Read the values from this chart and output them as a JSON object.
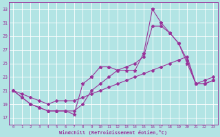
{
  "xlabel": "Windchill (Refroidissement éolien,°C)",
  "bg_color": "#b2e4e4",
  "grid_color": "#ffffff",
  "line_color": "#993399",
  "xlim": [
    -0.5,
    23.5
  ],
  "ylim": [
    16,
    34
  ],
  "xticks": [
    0,
    1,
    2,
    3,
    4,
    5,
    6,
    7,
    8,
    9,
    10,
    11,
    12,
    13,
    14,
    15,
    16,
    17,
    18,
    19,
    20,
    21,
    22,
    23
  ],
  "yticks": [
    17,
    19,
    21,
    23,
    25,
    27,
    29,
    31,
    33
  ],
  "line_spike_x": [
    0,
    1,
    2,
    3,
    4,
    5,
    6,
    7,
    8,
    9,
    10,
    11,
    12,
    13,
    14,
    15,
    16,
    17,
    18,
    19,
    20,
    21,
    22,
    23
  ],
  "line_spike_y": [
    21,
    20,
    19,
    18.5,
    18,
    18,
    18,
    17.5,
    22,
    23,
    24.5,
    24.5,
    24,
    24,
    24,
    26.5,
    33,
    31,
    29.5,
    28,
    25,
    22,
    22,
    22.5
  ],
  "line_mid_x": [
    0,
    1,
    2,
    3,
    4,
    5,
    6,
    7,
    8,
    9,
    10,
    11,
    12,
    13,
    14,
    15,
    16,
    17,
    18,
    19,
    20,
    21,
    22,
    23
  ],
  "line_mid_y": [
    21,
    20,
    19,
    18.5,
    18,
    18,
    18,
    18,
    19,
    21,
    22,
    23,
    24,
    24.5,
    25,
    26,
    30.5,
    30.5,
    29.5,
    28,
    25.5,
    22,
    22,
    22.5
  ],
  "line_base_x": [
    0,
    1,
    2,
    3,
    4,
    5,
    6,
    7,
    8,
    9,
    10,
    11,
    12,
    13,
    14,
    15,
    16,
    17,
    18,
    19,
    20,
    21,
    22,
    23
  ],
  "line_base_y": [
    21,
    20.5,
    20,
    19.5,
    19,
    19.5,
    19.5,
    19.5,
    20,
    20.5,
    21,
    21.5,
    22,
    22.5,
    23,
    23.5,
    24,
    24.5,
    25,
    25.5,
    26,
    22,
    22.5,
    23
  ]
}
